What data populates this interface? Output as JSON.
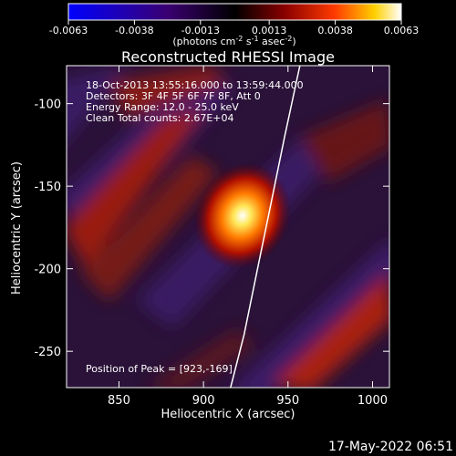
{
  "title": "Reconstructed RHESSI Image",
  "colorbar": {
    "tick_labels": [
      "-0.0063",
      "-0.0038",
      "-0.0013",
      "0.0013",
      "0.0038",
      "0.0063"
    ],
    "unit_html": "(photons cm<tspan baseline-shift='super' font-size='8'>-2</tspan> s<tspan baseline-shift='super' font-size='8'>-1</tspan> asec<tspan baseline-shift='super' font-size='8'>-2</tspan>)",
    "unit_text": "(photons cm-2 s-1 asec-2)"
  },
  "info_lines": [
    "18-Oct-2013 13:55:16.000 to 13:59:44.000",
    "Detectors: 3F 4F 5F 6F 7F 8F, Att 0",
    "Energy Range: 12.0 - 25.0 keV",
    "Clean     Total counts: 2.67E+04"
  ],
  "peak_label": "Position of Peak = [923,-169]",
  "timestamp": "17-May-2022 06:51",
  "chart_data": {
    "type": "heatmap",
    "title": "Reconstructed RHESSI Image",
    "xlabel": "Heliocentric X (arcsec)",
    "ylabel": "Heliocentric Y (arcsec)",
    "xlim": [
      819,
      1010
    ],
    "ylim": [
      -272,
      -77
    ],
    "x_ticks": [
      850,
      900,
      950,
      1000
    ],
    "y_ticks": [
      -100,
      -150,
      -200,
      -250
    ],
    "color_range": [
      -0.0063,
      0.0063
    ],
    "peak": {
      "x": 923,
      "y": -169
    },
    "limb_curve": [
      [
        957,
        -77
      ],
      [
        948,
        -120
      ],
      [
        940,
        -160
      ],
      [
        932,
        -200
      ],
      [
        924,
        -240
      ],
      [
        916,
        -272
      ]
    ]
  }
}
